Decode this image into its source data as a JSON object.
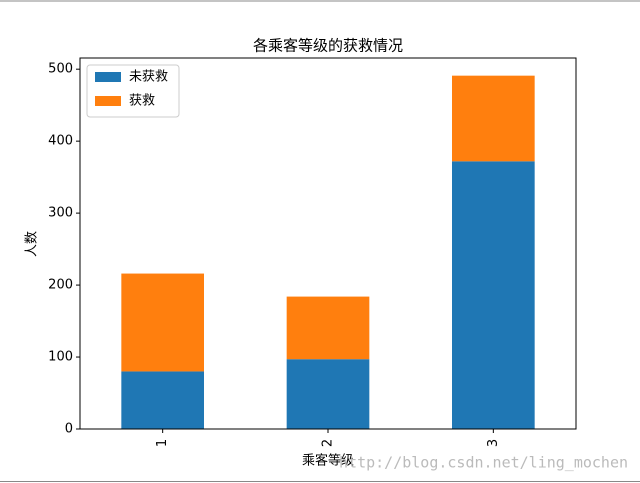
{
  "chart_data": {
    "type": "bar",
    "stacked": true,
    "title": "各乘客等级的获救情况",
    "x_label": "乘客等级",
    "y_label": "人数",
    "categories": [
      "1",
      "2",
      "3"
    ],
    "series": [
      {
        "name": "未获救",
        "color": "#1f77b4",
        "values": [
          80,
          97,
          372
        ]
      },
      {
        "name": "获救",
        "color": "#ff7f0e",
        "values": [
          136,
          87,
          119
        ]
      }
    ],
    "ylim": [
      0,
      515.55
    ],
    "yticks": [
      0,
      100,
      200,
      300,
      400,
      500
    ],
    "legend": "upper-left",
    "grid": false
  },
  "watermark": "http://blog.csdn.net/ling_mochen"
}
